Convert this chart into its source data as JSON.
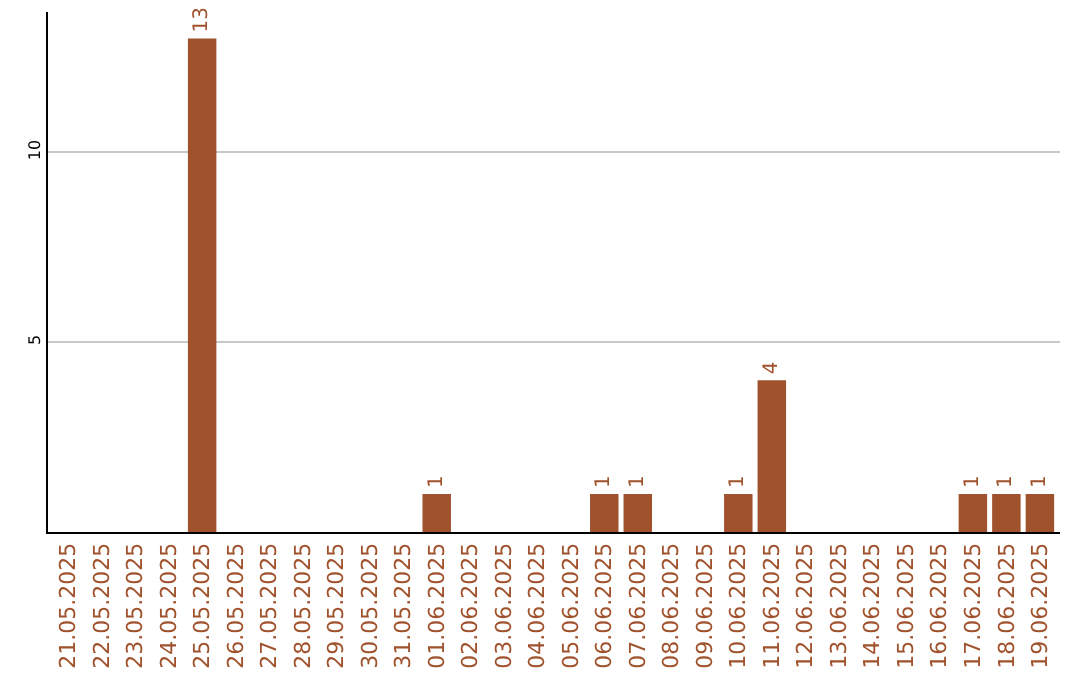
{
  "chart_data": {
    "type": "bar",
    "categories": [
      "21.05.2025",
      "22.05.2025",
      "23.05.2025",
      "24.05.2025",
      "25.05.2025",
      "26.05.2025",
      "27.05.2025",
      "28.05.2025",
      "29.05.2025",
      "30.05.2025",
      "31.05.2025",
      "01.06.2025",
      "02.06.2025",
      "03.06.2025",
      "04.06.2025",
      "05.06.2025",
      "06.06.2025",
      "07.06.2025",
      "08.06.2025",
      "09.06.2025",
      "10.06.2025",
      "11.06.2025",
      "12.06.2025",
      "13.06.2025",
      "14.06.2025",
      "15.06.2025",
      "16.06.2025",
      "17.06.2025",
      "18.06.2025",
      "19.06.2025"
    ],
    "values": [
      0,
      0,
      0,
      0,
      13,
      0,
      0,
      0,
      0,
      0,
      0,
      1,
      0,
      0,
      0,
      0,
      1,
      1,
      0,
      0,
      1,
      4,
      0,
      0,
      0,
      0,
      0,
      1,
      1,
      1
    ],
    "value_labels": [
      null,
      null,
      null,
      null,
      "13",
      null,
      null,
      null,
      null,
      null,
      null,
      "1",
      null,
      null,
      null,
      null,
      "1",
      "1",
      null,
      null,
      "1",
      "4",
      null,
      null,
      null,
      null,
      null,
      "1",
      "1",
      "1"
    ],
    "color": "#a0522d",
    "ylim": [
      0,
      13.7
    ],
    "yticks": [
      5,
      10
    ],
    "grid": "y"
  }
}
